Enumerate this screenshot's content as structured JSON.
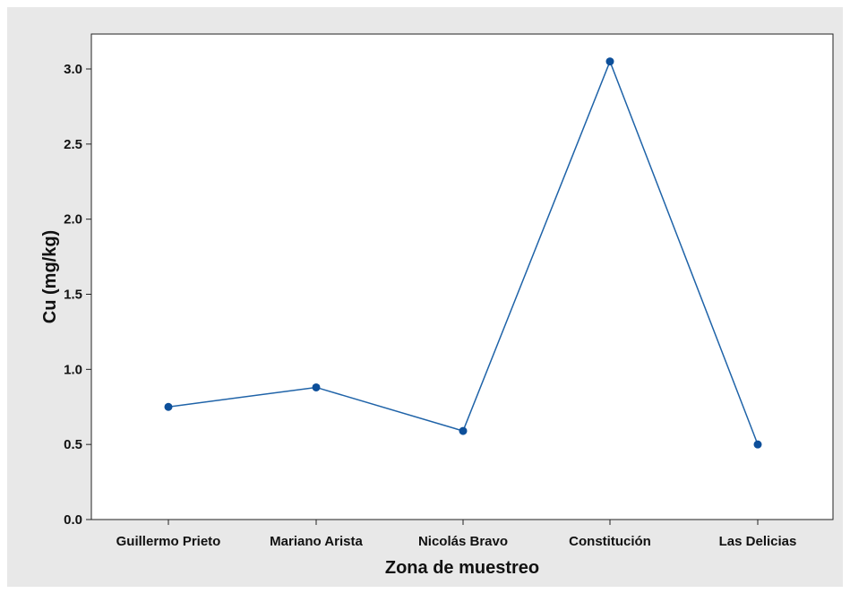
{
  "chart_data": {
    "type": "line",
    "xlabel": "Zona de muestreo",
    "ylabel": "Cu (mg/kg)",
    "categories": [
      "Guillermo Prieto",
      "Mariano Arista",
      "Nicolás Bravo",
      "Constitución",
      "Las Delicias"
    ],
    "series": [
      {
        "values": [
          0.75,
          0.88,
          0.59,
          3.05,
          0.5
        ]
      }
    ],
    "ylim": [
      0,
      3.0
    ],
    "yticks": [
      "0.0",
      "0.5",
      "1.0",
      "1.5",
      "2.0",
      "2.5",
      "3.0"
    ],
    "grid": false,
    "colors": {
      "line": "#1f63a8",
      "marker": "#0d4f9a",
      "background": "#e8e8e8",
      "plot_bg": "#ffffff"
    }
  }
}
